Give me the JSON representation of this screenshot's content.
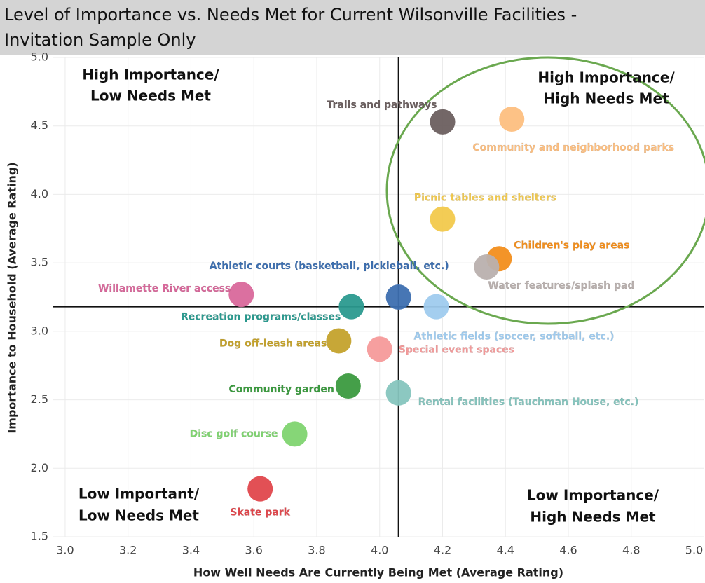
{
  "chart_data": {
    "type": "scatter",
    "title": [
      "Level of Importance vs. Needs Met for Current Wilsonville Facilities -",
      "Invitation Sample Only"
    ],
    "x_label": "How Well Needs Are Currently Being Met (Average Rating)",
    "y_label": "Importance to Household (Average Rating)",
    "xlim": [
      2.96,
      5.03
    ],
    "ylim": [
      1.5,
      5.0
    ],
    "xticks": [
      {
        "value": 3.0,
        "label": "3.0"
      },
      3.2,
      3.4,
      3.6,
      3.8,
      {
        "value": 4.0,
        "label": "4.0"
      },
      4.2,
      4.4,
      4.6,
      4.8,
      {
        "value": 5.0,
        "label": "5.0"
      }
    ],
    "yticks": [
      {
        "value": 1.5,
        "label": "1.5"
      },
      {
        "value": 2.0,
        "label": "2.0"
      },
      2.5,
      {
        "value": 3.0,
        "label": "3.0"
      },
      3.5,
      {
        "value": 4.0,
        "label": "4.0"
      },
      4.5,
      {
        "value": 5.0,
        "label": "5.0"
      }
    ],
    "grid": true,
    "reference_lines": {
      "x": 4.06,
      "y": 3.18
    },
    "quadrants": {
      "top_left": [
        "High Importance/",
        "Low Needs Met"
      ],
      "top_right": [
        "High Importance/",
        "High Needs Met"
      ],
      "bottom_left": [
        "Low Important/",
        "Low Needs Met"
      ],
      "bottom_right": [
        "Low Importance/",
        "High Needs Met"
      ]
    },
    "points": [
      {
        "label": "Trails and pathways",
        "x": 4.2,
        "y": 4.53,
        "color": "#6b5f5f"
      },
      {
        "label": "Community and neighborhood parks",
        "x": 4.42,
        "y": 4.55,
        "color": "#fdbf80"
      },
      {
        "label": "Picnic tables and shelters",
        "x": 4.2,
        "y": 3.82,
        "color": "#f2c94c"
      },
      {
        "label": "Children's play areas",
        "x": 4.38,
        "y": 3.53,
        "color": "#f28e1c"
      },
      {
        "label": "Water features/splash pad",
        "x": 4.34,
        "y": 3.47,
        "color": "#b9b0ae"
      },
      {
        "label": "Athletic courts (basketball, pickleball, etc.)",
        "x": 4.06,
        "y": 3.25,
        "color": "#3d6fb0"
      },
      {
        "label": "Willamette River access",
        "x": 3.56,
        "y": 3.27,
        "color": "#d9689b"
      },
      {
        "label": "Recreation programs/classes",
        "x": 3.91,
        "y": 3.18,
        "color": "#2b9a8f"
      },
      {
        "label": "Athletic fields (soccer, softball,  etc.)",
        "x": 4.18,
        "y": 3.18,
        "color": "#9fcbee"
      },
      {
        "label": "Dog off-leash areas",
        "x": 3.87,
        "y": 2.93,
        "color": "#c4a22c"
      },
      {
        "label": "Special event spaces",
        "x": 4.0,
        "y": 2.87,
        "color": "#f59a9a"
      },
      {
        "label": "Community garden",
        "x": 3.9,
        "y": 2.6,
        "color": "#3b9a3f"
      },
      {
        "label": "Rental facilities (Tauchman House, etc.)",
        "x": 4.06,
        "y": 2.55,
        "color": "#86c5be"
      },
      {
        "label": "Disc golf course",
        "x": 3.73,
        "y": 2.25,
        "color": "#7fd470"
      },
      {
        "label": "Skate park",
        "x": 3.62,
        "y": 1.85,
        "color": "#e0474c"
      }
    ]
  }
}
